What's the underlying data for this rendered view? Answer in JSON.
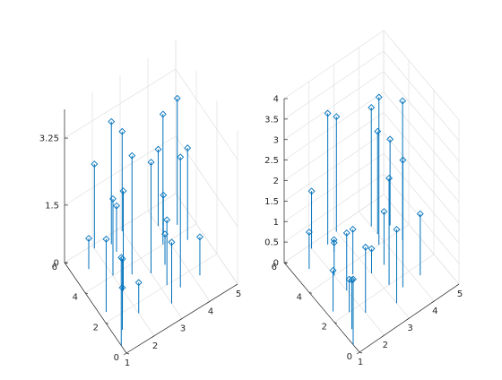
{
  "figure": {
    "background": "#ffffff",
    "series_color": "#0072bd"
  },
  "chart_data": [
    {
      "type": "stem3",
      "title": "",
      "xlabel": "",
      "ylabel": "",
      "zlabel": "",
      "xlim": [
        1,
        5
      ],
      "ylim": [
        0,
        6
      ],
      "zlim": [
        0,
        4
      ],
      "xticks": [
        "1",
        "2",
        "3",
        "4",
        "5"
      ],
      "yticks": [
        "0",
        "2",
        "4",
        "6"
      ],
      "zticks": [
        "0",
        "1.5",
        "3.25"
      ],
      "grid": true,
      "marker": "diamond",
      "points": [
        {
          "x": 1.0,
          "y": 0.5,
          "z": 2.3
        },
        {
          "x": 1.3,
          "y": 1.2,
          "z": 1.1
        },
        {
          "x": 1.6,
          "y": 2.0,
          "z": 1.4
        },
        {
          "x": 2.0,
          "y": 3.0,
          "z": 2.6
        },
        {
          "x": 2.0,
          "y": 4.0,
          "z": 2.0
        },
        {
          "x": 2.5,
          "y": 5.0,
          "z": 1.2
        },
        {
          "x": 3.0,
          "y": 1.0,
          "z": 1.6
        },
        {
          "x": 3.0,
          "y": 3.0,
          "z": 2.9
        },
        {
          "x": 3.5,
          "y": 1.5,
          "z": 3.4
        },
        {
          "x": 4.0,
          "y": 4.5,
          "z": 1.0
        },
        {
          "x": 1.5,
          "y": 5.0,
          "z": 0.8
        },
        {
          "x": 4.2,
          "y": 1.5,
          "z": 1.0
        },
        {
          "x": 2.0,
          "y": 5.8,
          "z": 2.2
        },
        {
          "x": 2.5,
          "y": 3.5,
          "z": 3.1
        },
        {
          "x": 3.2,
          "y": 2.0,
          "z": 1.7
        },
        {
          "x": 3.5,
          "y": 3.0,
          "z": 0.8
        },
        {
          "x": 2.0,
          "y": 1.5,
          "z": 0.8
        },
        {
          "x": 3.0,
          "y": 5.8,
          "z": 2.6
        },
        {
          "x": 2.5,
          "y": 5.5,
          "z": 3.2
        },
        {
          "x": 4.5,
          "y": 3.5,
          "z": 2.4
        },
        {
          "x": 4.0,
          "y": 5.0,
          "z": 2.0
        },
        {
          "x": 4.5,
          "y": 4.5,
          "z": 3.3
        },
        {
          "x": 3.8,
          "y": 4.0,
          "z": 3.4
        },
        {
          "x": 1.2,
          "y": 2.5,
          "z": 1.9
        }
      ]
    },
    {
      "type": "stem3",
      "title": "",
      "xlabel": "",
      "ylabel": "",
      "zlabel": "",
      "xlim": [
        1,
        5
      ],
      "ylim": [
        0,
        6
      ],
      "zlim": [
        0,
        4
      ],
      "xticks": [
        "1",
        "2",
        "3",
        "4",
        "5"
      ],
      "yticks": [
        "0",
        "2",
        "4",
        "6"
      ],
      "zticks": [
        "0",
        "0.5",
        "1",
        "1.5",
        "2",
        "2.5",
        "3",
        "3.5",
        "4"
      ],
      "grid": true,
      "marker": "diamond",
      "points": [
        {
          "x": 1.0,
          "y": 0.5,
          "z": 1.6
        },
        {
          "x": 1.3,
          "y": 1.2,
          "z": 1.2
        },
        {
          "x": 1.6,
          "y": 2.0,
          "z": 0.8
        },
        {
          "x": 2.0,
          "y": 3.0,
          "z": 1.4
        },
        {
          "x": 2.0,
          "y": 4.0,
          "z": 0.8
        },
        {
          "x": 2.5,
          "y": 5.0,
          "z": 0.3
        },
        {
          "x": 3.0,
          "y": 1.0,
          "z": 1.8
        },
        {
          "x": 3.0,
          "y": 3.0,
          "z": 0.6
        },
        {
          "x": 3.5,
          "y": 1.5,
          "z": 3.1
        },
        {
          "x": 4.0,
          "y": 4.5,
          "z": 2.5
        },
        {
          "x": 1.5,
          "y": 5.0,
          "z": 0.9
        },
        {
          "x": 4.2,
          "y": 1.5,
          "z": 1.5
        },
        {
          "x": 2.0,
          "y": 5.8,
          "z": 1.4
        },
        {
          "x": 2.5,
          "y": 3.5,
          "z": 1.1
        },
        {
          "x": 3.2,
          "y": 2.0,
          "z": 2.6
        },
        {
          "x": 3.5,
          "y": 3.0,
          "z": 1.3
        },
        {
          "x": 2.0,
          "y": 1.5,
          "z": 1.6
        },
        {
          "x": 3.0,
          "y": 5.8,
          "z": 2.8
        },
        {
          "x": 2.5,
          "y": 5.5,
          "z": 3.2
        },
        {
          "x": 4.5,
          "y": 3.5,
          "z": 3.4
        },
        {
          "x": 4.0,
          "y": 5.0,
          "z": 2.9
        },
        {
          "x": 4.5,
          "y": 4.5,
          "z": 2.1
        },
        {
          "x": 3.8,
          "y": 4.0,
          "z": 3.6
        },
        {
          "x": 1.2,
          "y": 2.5,
          "z": 1.0
        }
      ]
    }
  ]
}
